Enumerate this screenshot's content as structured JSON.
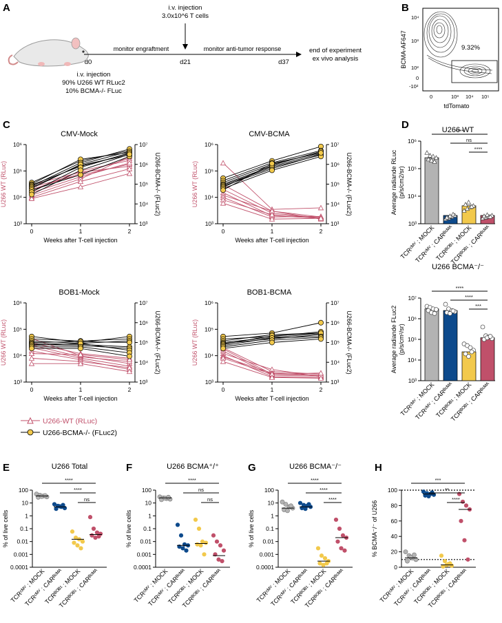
{
  "panel_labels": {
    "A": "A",
    "B": "B",
    "C": "C",
    "D": "D",
    "E": "E",
    "F": "F",
    "G": "G",
    "H": "H"
  },
  "colors": {
    "rluc": "#c0506a",
    "bcma_ko": "#f2c94c",
    "gray": "#b3b3b3",
    "blue": "#0d4a8c",
    "red": "#c0506a"
  },
  "panel_a": {
    "iv_top_1": "i.v. injection",
    "iv_top_2": "3.0x10^6 T cells",
    "monitor_engraftment": "monitor engraftment",
    "monitor_response": "monitor anti-tumor response",
    "d0": "d0",
    "d21": "d21",
    "d37": "d37",
    "end_1": "end of experiment",
    "end_2": "ex vivo analysis",
    "iv_bottom_1": "i.v. injection",
    "iv_bottom_2": "90% U266 WT RLuc2",
    "iv_bottom_3": "10% BCMA-/- FLuc"
  },
  "panel_b": {
    "ylabel": "BCMA-AF647",
    "xlabel": "tdTomato",
    "gate_percent": "9.32%",
    "x_ticks": [
      "0",
      "10³",
      "10⁴",
      "10⁵"
    ],
    "y_ticks": [
      "10⁴",
      "10³",
      "10²",
      "0",
      "-10²"
    ]
  },
  "chart_data": {
    "type": "line",
    "panel_c": {
      "x": [
        0,
        1,
        2
      ],
      "xlabel": "Weeks after T-cell injection",
      "ylabel_left": "U266 WT (RLuc)",
      "ylabel_right": "U266-BCMA-/- (FLuc2)",
      "ylim_left": [
        1000,
        1000000
      ],
      "ylim_right": [
        1000,
        10000000
      ],
      "left_ticks": [
        "10⁶",
        "10⁵",
        "10⁴",
        "10³"
      ],
      "right_ticks": [
        "10⁷",
        "10⁶",
        "10⁵",
        "10⁴",
        "10³"
      ],
      "x_ticks": [
        "0",
        "1",
        "2"
      ],
      "legend": [
        "U266-WT (RLuc)",
        "U266-BCMA-/- (FLuc2)"
      ],
      "subplots": [
        {
          "title": "CMV-Mock",
          "rluc": [
            [
              30000,
              90000,
              150000
            ],
            [
              25000,
              70000,
              180000
            ],
            [
              20000,
              80000,
              300000
            ],
            [
              18000,
              100000,
              250000
            ],
            [
              15000,
              60000,
              200000
            ],
            [
              12000,
              50000,
              350000
            ],
            [
              10000,
              40000,
              120000
            ],
            [
              9000,
              25000,
              80000
            ]
          ],
          "fluc": [
            [
              120000,
              1500000,
              5000000
            ],
            [
              100000,
              1800000,
              4000000
            ],
            [
              90000,
              800000,
              3500000
            ],
            [
              80000,
              1200000,
              6000000
            ],
            [
              70000,
              900000,
              3000000
            ],
            [
              60000,
              1000000,
              4500000
            ],
            [
              50000,
              300000,
              2500000
            ],
            [
              40000,
              700000,
              3800000
            ],
            [
              30000,
              500000,
              3200000
            ]
          ]
        },
        {
          "title": "CMV-BCMA",
          "rluc": [
            [
              200000,
              3500,
              4000
            ],
            [
              30000,
              3000,
              1800
            ],
            [
              20000,
              2500,
              1700
            ],
            [
              15000,
              2000,
              1600
            ],
            [
              12000,
              3000,
              1500
            ],
            [
              10000,
              1800,
              1900
            ],
            [
              8000,
              2200,
              1700
            ],
            [
              6000,
              1500,
              1600
            ]
          ],
          "fluc": [
            [
              200000,
              1500000,
              8000000
            ],
            [
              150000,
              1200000,
              5000000
            ],
            [
              120000,
              1000000,
              4000000
            ],
            [
              100000,
              800000,
              3500000
            ],
            [
              90000,
              700000,
              3000000
            ],
            [
              80000,
              600000,
              3200000
            ],
            [
              70000,
              900000,
              4500000
            ],
            [
              60000,
              500000,
              2500000
            ],
            [
              50000,
              1100000,
              3800000
            ]
          ]
        },
        {
          "title": "BOB1-Mock",
          "rluc": [
            [
              45000,
              10000,
              5000
            ],
            [
              30000,
              12000,
              8000
            ],
            [
              25000,
              9000,
              6000
            ],
            [
              20000,
              8000,
              4000
            ],
            [
              15000,
              7000,
              3000
            ],
            [
              12000,
              11000,
              7000
            ],
            [
              8000,
              6000,
              3500
            ],
            [
              5000,
              5000,
              2500
            ]
          ],
          "fluc": [
            [
              200000,
              100000,
              200000
            ],
            [
              150000,
              120000,
              150000
            ],
            [
              120000,
              90000,
              120000
            ],
            [
              100000,
              110000,
              100000
            ],
            [
              90000,
              80000,
              60000
            ],
            [
              80000,
              70000,
              50000
            ],
            [
              70000,
              90000,
              40000
            ],
            [
              60000,
              60000,
              30000
            ],
            [
              50000,
              50000,
              20000
            ]
          ]
        },
        {
          "title": "BOB1-BCMA",
          "rluc": [
            [
              20000,
              2500,
              2000
            ],
            [
              18000,
              2000,
              1800
            ],
            [
              15000,
              1800,
              1700
            ],
            [
              12000,
              3000,
              1600
            ],
            [
              10000,
              1600,
              1500
            ],
            [
              9000,
              2200,
              1800
            ],
            [
              8000,
              2000,
              2200
            ],
            [
              6000,
              1500,
              1400
            ]
          ],
          "fluc": [
            [
              200000,
              300000,
              1000000
            ],
            [
              150000,
              200000,
              350000
            ],
            [
              120000,
              250000,
              300000
            ],
            [
              100000,
              180000,
              280000
            ],
            [
              90000,
              150000,
              250000
            ],
            [
              80000,
              220000,
              300000
            ],
            [
              70000,
              170000,
              200000
            ],
            [
              60000,
              130000,
              180000
            ],
            [
              50000,
              100000,
              150000
            ]
          ]
        }
      ]
    },
    "panel_d": [
      {
        "title": "U266 WT",
        "ylabel_1": "Average radiande RLuc",
        "ylabel_2": "(p/s/cm2/sr)",
        "ylim": [
          1000,
          1000000
        ],
        "y_ticks": [
          "10⁶",
          "10⁵",
          "10⁴",
          "10³"
        ],
        "bars": [
          250000,
          2000,
          4500,
          2000
        ],
        "points": [
          [
            380000,
            300000,
            280000,
            250000,
            220000,
            200000,
            180000
          ],
          [
            1500,
            1600,
            1800,
            2000,
            1700,
            1900,
            2200
          ],
          [
            3000,
            3500,
            4000,
            4500,
            5000,
            6000,
            4200
          ],
          [
            1600,
            1700,
            1800,
            2000,
            1900,
            2100,
            1800
          ]
        ],
        "sig": [
          [
            "****",
            "1",
            "4"
          ],
          [
            "ns",
            "2",
            "4"
          ],
          [
            "****",
            "3",
            "4"
          ]
        ]
      },
      {
        "title": "U266 BCMA⁻/⁻",
        "ylabel_1": "Average radiande FLuc2",
        "ylabel_2": "(p/s/cm²/sr)",
        "ylim": [
          1000,
          10000000
        ],
        "y_ticks": [
          "10⁷",
          "10⁶",
          "10⁵",
          "10⁴",
          "10³"
        ],
        "bars": [
          3000000,
          2500000,
          25000,
          120000
        ],
        "points": [
          [
            4000000,
            3500000,
            3000000,
            2800000,
            2500000,
            2000000,
            1800000
          ],
          [
            5000000,
            3000000,
            2500000,
            2200000,
            2000000,
            1800000,
            2400000
          ],
          [
            60000,
            50000,
            40000,
            30000,
            20000,
            15000,
            25000
          ],
          [
            400000,
            150000,
            130000,
            110000,
            100000,
            120000,
            140000
          ]
        ],
        "sig": [
          [
            "****",
            "1",
            "4"
          ],
          [
            "****",
            "2",
            "4"
          ],
          [
            "***",
            "3",
            "4"
          ]
        ]
      }
    ],
    "panel_d_categories": [
      "TCRᶜᴹⱽ ; MOCK",
      "TCRᶜᴹⱽ ; CARᴮᶜᴹᴬ",
      "TCRᴮᴼᴮ¹ ; MOCK",
      "TCRᴮᴼᴮ¹ ; CARᴮᶜᴹᴬ"
    ],
    "panels_efgh": [
      {
        "title": "U266 Total",
        "ylabel": "% of live cells",
        "scale": "log",
        "ylim": [
          0.0001,
          100
        ],
        "y_ticks": [
          "100",
          "10",
          "1",
          "0.1",
          "0.01",
          "0.001",
          "0.0001"
        ],
        "medians": [
          35,
          5,
          0.015,
          0.035
        ],
        "points": [
          [
            50,
            40,
            35,
            30,
            28,
            32,
            38
          ],
          [
            8,
            6,
            5,
            4,
            3.5,
            5.5,
            7
          ],
          [
            0.06,
            0.02,
            0.015,
            0.01,
            0.008,
            0.005,
            0.003
          ],
          [
            0.8,
            0.1,
            0.05,
            0.04,
            0.03,
            0.02,
            0.025
          ]
        ],
        "sig": [
          [
            "****",
            "1",
            "4"
          ],
          [
            "****",
            "2",
            "4"
          ],
          [
            "ns",
            "3",
            "4"
          ]
        ]
      },
      {
        "title": "U266 BCMA⁺/⁺",
        "ylabel": "% of live cells",
        "scale": "log",
        "ylim": [
          0.0001,
          100
        ],
        "y_ticks": [
          "100",
          "10",
          "1",
          "0.1",
          "0.01",
          "0.001",
          "0.0001"
        ],
        "medians": [
          25,
          0.005,
          0.007,
          0.0008
        ],
        "points": [
          [
            30,
            25,
            22,
            20,
            18,
            24,
            28
          ],
          [
            0.2,
            0.03,
            0.006,
            0.005,
            0.004,
            0.003,
            0.002
          ],
          [
            0.5,
            0.1,
            0.01,
            0.008,
            0.006,
            0.005,
            0.001
          ],
          [
            0.03,
            0.01,
            0.005,
            0.002,
            0.001,
            0.0004,
            0.0003
          ]
        ],
        "sig": [
          [
            "****",
            "1",
            "4"
          ],
          [
            "ns",
            "2",
            "4"
          ],
          [
            "ns",
            "3",
            "4"
          ]
        ]
      },
      {
        "title": "U266 BCMA⁻/⁻",
        "ylabel": "% of live cells",
        "scale": "log",
        "ylim": [
          0.0001,
          100
        ],
        "y_ticks": [
          "100",
          "10",
          "1",
          "0.1",
          "0.01",
          "0.001",
          "0.0001"
        ],
        "medians": [
          4,
          5,
          0.0003,
          0.02
        ],
        "points": [
          [
            12,
            8,
            5,
            4,
            3,
            2.5,
            6
          ],
          [
            10,
            7,
            6,
            5,
            4,
            3.5,
            8
          ],
          [
            0.003,
            0.0008,
            0.0005,
            0.0003,
            0.0002,
            0.00015,
            0.0002
          ],
          [
            0.5,
            0.1,
            0.03,
            0.02,
            0.01,
            0.003,
            0.002
          ]
        ],
        "sig": [
          [
            "****",
            "1",
            "4"
          ],
          [
            "****",
            "2",
            "4"
          ],
          [
            "****",
            "3",
            "4"
          ]
        ]
      },
      {
        "title": "",
        "ylabel": "% BCMA⁻/⁻ of U266",
        "scale": "linear",
        "ylim": [
          0,
          100
        ],
        "y_ticks": [
          "100",
          "80",
          "60",
          "40",
          "20",
          "0"
        ],
        "medians": [
          12,
          95,
          3,
          75
        ],
        "ref_lines": [
          10,
          100
        ],
        "points": [
          [
            20,
            15,
            12,
            10,
            8,
            13,
            16
          ],
          [
            98,
            96,
            95,
            94,
            93,
            92,
            97
          ],
          [
            15,
            8,
            4,
            2,
            1,
            3,
            5
          ],
          [
            95,
            85,
            80,
            75,
            60,
            35,
            10
          ]
        ],
        "sig": [
          [
            "***",
            "1",
            "4"
          ],
          [
            "**",
            "2",
            "4"
          ],
          [
            "****",
            "3",
            "4"
          ]
        ]
      }
    ],
    "efgh_categories": [
      "TCRᶜᴹⱽ ; MOCK",
      "TCRᶜᴹⱽ ; CARᴮᶜᴹᴬ",
      "TCRᴮᴼᴮ¹ ; MOCK",
      "TCRᴮᴼᴮ¹ ; CARᴮᶜᴹᴬ"
    ]
  }
}
